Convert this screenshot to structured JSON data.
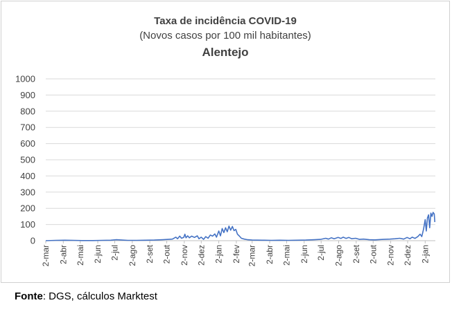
{
  "chart_data": {
    "type": "line",
    "title": "Taxa de incidência COVID-19",
    "subtitle": "(Novos casos por 100 mil habitantes)",
    "region": "Alentejo",
    "ylim": [
      0,
      1000
    ],
    "yticks": [
      0,
      100,
      200,
      300,
      400,
      500,
      600,
      700,
      800,
      900,
      1000
    ],
    "xlim": [
      "2020-03-02",
      "2022-01-20"
    ],
    "xticks": [
      {
        "date": "2020-03-02",
        "label": "2-mar"
      },
      {
        "date": "2020-04-02",
        "label": "2-abr"
      },
      {
        "date": "2020-05-02",
        "label": "2-mai"
      },
      {
        "date": "2020-06-02",
        "label": "2-jun"
      },
      {
        "date": "2020-07-02",
        "label": "2-jul"
      },
      {
        "date": "2020-08-02",
        "label": "2-ago"
      },
      {
        "date": "2020-09-02",
        "label": "2-set"
      },
      {
        "date": "2020-10-02",
        "label": "2-out"
      },
      {
        "date": "2020-11-02",
        "label": "2-nov"
      },
      {
        "date": "2020-12-02",
        "label": "2-dez"
      },
      {
        "date": "2021-01-02",
        "label": "2-jan"
      },
      {
        "date": "2021-02-02",
        "label": "2-fev"
      },
      {
        "date": "2021-03-02",
        "label": "2-mar"
      },
      {
        "date": "2021-04-02",
        "label": "2-abr"
      },
      {
        "date": "2021-05-02",
        "label": "2-mai"
      },
      {
        "date": "2021-06-02",
        "label": "2-jun"
      },
      {
        "date": "2021-07-02",
        "label": "2-jul"
      },
      {
        "date": "2021-08-02",
        "label": "2-ago"
      },
      {
        "date": "2021-09-02",
        "label": "2-set"
      },
      {
        "date": "2021-10-02",
        "label": "2-out"
      },
      {
        "date": "2021-11-02",
        "label": "2-nov"
      },
      {
        "date": "2021-12-02",
        "label": "2-dez"
      },
      {
        "date": "2022-01-02",
        "label": "2-jan"
      }
    ],
    "grid": true,
    "series": [
      {
        "color": "#4472c4",
        "points": [
          [
            "2020-03-02",
            0
          ],
          [
            "2020-03-20",
            2
          ],
          [
            "2020-04-05",
            3
          ],
          [
            "2020-04-20",
            2
          ],
          [
            "2020-05-05",
            1
          ],
          [
            "2020-05-25",
            1
          ],
          [
            "2020-06-10",
            2
          ],
          [
            "2020-06-25",
            3
          ],
          [
            "2020-07-05",
            6
          ],
          [
            "2020-07-15",
            4
          ],
          [
            "2020-07-25",
            2
          ],
          [
            "2020-08-10",
            2
          ],
          [
            "2020-08-25",
            3
          ],
          [
            "2020-09-10",
            4
          ],
          [
            "2020-09-25",
            6
          ],
          [
            "2020-10-05",
            8
          ],
          [
            "2020-10-12",
            10
          ],
          [
            "2020-10-18",
            22
          ],
          [
            "2020-10-21",
            12
          ],
          [
            "2020-10-25",
            28
          ],
          [
            "2020-10-28",
            15
          ],
          [
            "2020-11-01",
            20
          ],
          [
            "2020-11-03",
            40
          ],
          [
            "2020-11-05",
            18
          ],
          [
            "2020-11-08",
            30
          ],
          [
            "2020-11-11",
            18
          ],
          [
            "2020-11-15",
            28
          ],
          [
            "2020-11-20",
            20
          ],
          [
            "2020-11-25",
            30
          ],
          [
            "2020-11-28",
            12
          ],
          [
            "2020-12-02",
            22
          ],
          [
            "2020-12-06",
            8
          ],
          [
            "2020-12-10",
            25
          ],
          [
            "2020-12-14",
            15
          ],
          [
            "2020-12-18",
            35
          ],
          [
            "2020-12-22",
            28
          ],
          [
            "2020-12-26",
            42
          ],
          [
            "2020-12-29",
            22
          ],
          [
            "2021-01-02",
            60
          ],
          [
            "2021-01-05",
            30
          ],
          [
            "2021-01-08",
            75
          ],
          [
            "2021-01-11",
            50
          ],
          [
            "2021-01-14",
            80
          ],
          [
            "2021-01-17",
            55
          ],
          [
            "2021-01-20",
            90
          ],
          [
            "2021-01-23",
            65
          ],
          [
            "2021-01-26",
            88
          ],
          [
            "2021-01-29",
            62
          ],
          [
            "2021-02-01",
            70
          ],
          [
            "2021-02-04",
            40
          ],
          [
            "2021-02-07",
            30
          ],
          [
            "2021-02-11",
            15
          ],
          [
            "2021-02-16",
            10
          ],
          [
            "2021-02-22",
            6
          ],
          [
            "2021-03-02",
            4
          ],
          [
            "2021-03-20",
            3
          ],
          [
            "2021-04-05",
            2
          ],
          [
            "2021-04-20",
            3
          ],
          [
            "2021-05-05",
            2
          ],
          [
            "2021-05-20",
            3
          ],
          [
            "2021-06-05",
            4
          ],
          [
            "2021-06-20",
            6
          ],
          [
            "2021-07-01",
            8
          ],
          [
            "2021-07-10",
            15
          ],
          [
            "2021-07-15",
            10
          ],
          [
            "2021-07-20",
            18
          ],
          [
            "2021-07-25",
            12
          ],
          [
            "2021-08-01",
            20
          ],
          [
            "2021-08-06",
            14
          ],
          [
            "2021-08-10",
            22
          ],
          [
            "2021-08-15",
            14
          ],
          [
            "2021-08-20",
            20
          ],
          [
            "2021-08-25",
            12
          ],
          [
            "2021-09-01",
            15
          ],
          [
            "2021-09-08",
            8
          ],
          [
            "2021-09-15",
            10
          ],
          [
            "2021-09-25",
            6
          ],
          [
            "2021-10-05",
            5
          ],
          [
            "2021-10-20",
            8
          ],
          [
            "2021-11-01",
            10
          ],
          [
            "2021-11-10",
            12
          ],
          [
            "2021-11-18",
            15
          ],
          [
            "2021-11-25",
            10
          ],
          [
            "2021-12-01",
            20
          ],
          [
            "2021-12-06",
            12
          ],
          [
            "2021-12-10",
            22
          ],
          [
            "2021-12-15",
            14
          ],
          [
            "2021-12-20",
            25
          ],
          [
            "2021-12-24",
            40
          ],
          [
            "2021-12-27",
            25
          ],
          [
            "2021-12-30",
            70
          ],
          [
            "2022-01-02",
            130
          ],
          [
            "2022-01-04",
            60
          ],
          [
            "2022-01-06",
            140
          ],
          [
            "2022-01-08",
            160
          ],
          [
            "2022-01-10",
            80
          ],
          [
            "2022-01-12",
            170
          ],
          [
            "2022-01-14",
            150
          ],
          [
            "2022-01-16",
            175
          ],
          [
            "2022-01-18",
            165
          ],
          [
            "2022-01-19",
            115
          ]
        ]
      }
    ]
  },
  "footer": {
    "source_label": "Fonte",
    "source_text": ": DGS, cálculos Marktest"
  }
}
